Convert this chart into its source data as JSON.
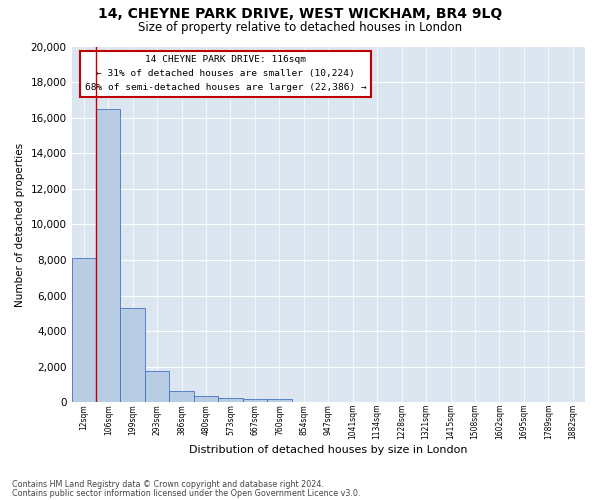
{
  "title": "14, CHEYNE PARK DRIVE, WEST WICKHAM, BR4 9LQ",
  "subtitle": "Size of property relative to detached houses in London",
  "xlabel": "Distribution of detached houses by size in London",
  "ylabel": "Number of detached properties",
  "categories": [
    "12sqm",
    "106sqm",
    "199sqm",
    "293sqm",
    "386sqm",
    "480sqm",
    "573sqm",
    "667sqm",
    "760sqm",
    "854sqm",
    "947sqm",
    "1041sqm",
    "1134sqm",
    "1228sqm",
    "1321sqm",
    "1415sqm",
    "1508sqm",
    "1602sqm",
    "1695sqm",
    "1789sqm",
    "1882sqm"
  ],
  "values": [
    8100,
    16500,
    5300,
    1750,
    650,
    350,
    270,
    220,
    180,
    0,
    0,
    0,
    0,
    0,
    0,
    0,
    0,
    0,
    0,
    0,
    0
  ],
  "bar_color": "#b8cce4",
  "bar_edge_color": "#4472c4",
  "property_line_color": "#c00000",
  "ylim": [
    0,
    20000
  ],
  "yticks": [
    0,
    2000,
    4000,
    6000,
    8000,
    10000,
    12000,
    14000,
    16000,
    18000,
    20000
  ],
  "bg_color": "#dce6f1",
  "annotation_title": "14 CHEYNE PARK DRIVE: 116sqm",
  "annotation_line1": "← 31% of detached houses are smaller (10,224)",
  "annotation_line2": "68% of semi-detached houses are larger (22,386) →",
  "annotation_box_color": "#c00000",
  "footnote1": "Contains HM Land Registry data © Crown copyright and database right 2024.",
  "footnote2": "Contains public sector information licensed under the Open Government Licence v3.0."
}
